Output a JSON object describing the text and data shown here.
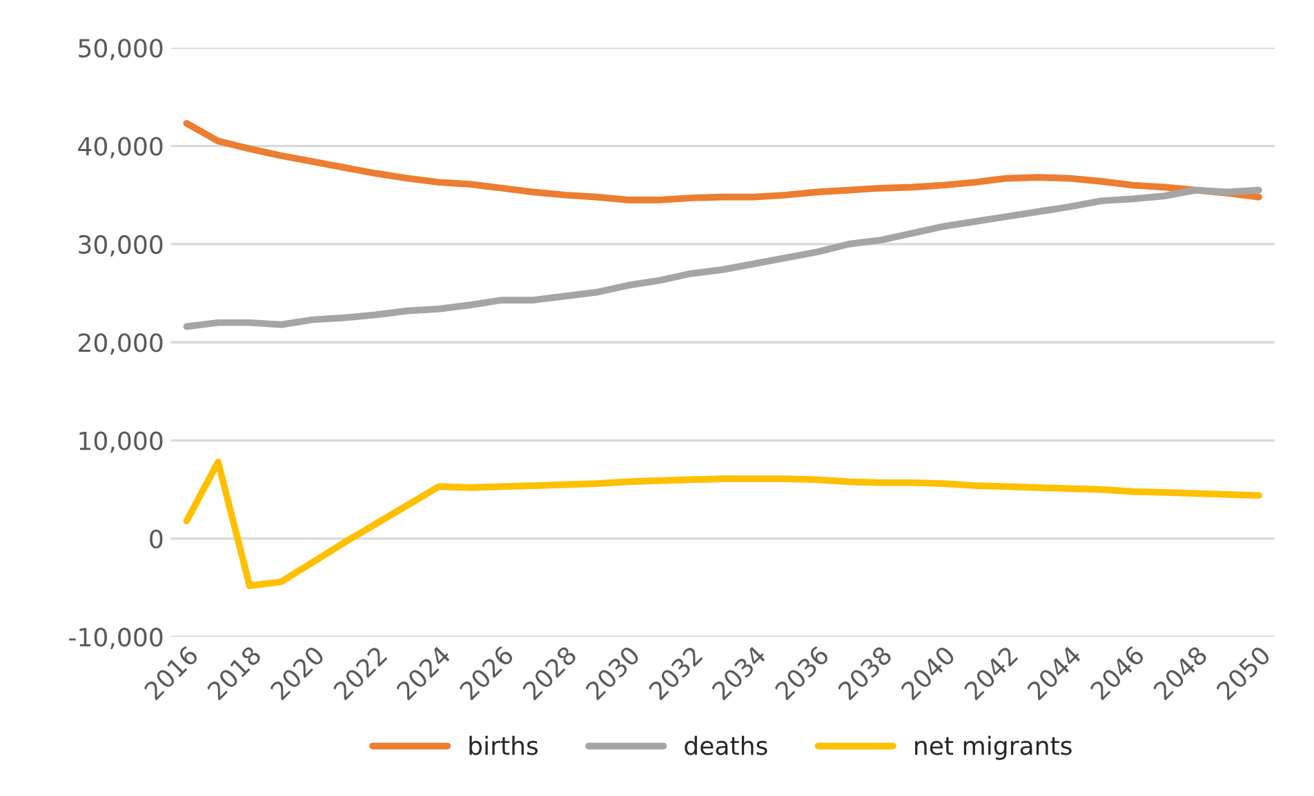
{
  "chart_data": {
    "type": "line",
    "categories": [
      "2016",
      null,
      "2018",
      null,
      "2020",
      null,
      "2022",
      null,
      "2024",
      null,
      "2026",
      null,
      "2028",
      null,
      "2030",
      null,
      "2032",
      null,
      "2034",
      null,
      "2036",
      null,
      "2038",
      null,
      "2040",
      null,
      "2042",
      null,
      "2044",
      null,
      "2046",
      null,
      "2048",
      null,
      "2050"
    ],
    "series": [
      {
        "name": "births",
        "color": "#ed7d31",
        "values": [
          42300,
          40500,
          39700,
          39000,
          38400,
          37800,
          37200,
          36700,
          36300,
          36100,
          35700,
          35300,
          35000,
          34800,
          34500,
          34500,
          34700,
          34800,
          34800,
          35000,
          35300,
          35500,
          35700,
          35800,
          36000,
          36300,
          36700,
          36800,
          36700,
          36400,
          36000,
          35800,
          35500,
          35200,
          34800
        ]
      },
      {
        "name": "deaths",
        "color": "#a5a5a5",
        "values": [
          21600,
          22000,
          22000,
          21800,
          22300,
          22500,
          22800,
          23200,
          23400,
          23800,
          24300,
          24300,
          24700,
          25100,
          25800,
          26300,
          27000,
          27400,
          28000,
          28600,
          29200,
          30000,
          30400,
          31100,
          31800,
          32300,
          32800,
          33300,
          33800,
          34400,
          34600,
          34900,
          35500,
          35300,
          35500
        ]
      },
      {
        "name": "net migrants",
        "color": "#ffc000",
        "values": [
          1800,
          7800,
          -4800,
          -4400,
          -2400,
          -400,
          1500,
          3400,
          5300,
          5200,
          5300,
          5400,
          5500,
          5600,
          5800,
          5900,
          6000,
          6100,
          6100,
          6100,
          6000,
          5800,
          5700,
          5700,
          5600,
          5400,
          5300,
          5200,
          5100,
          5000,
          4800,
          4700,
          4600,
          4500,
          4400
        ]
      }
    ],
    "ylim": [
      -10000,
      50000
    ],
    "yticks": [
      {
        "value": -10000,
        "label": "-10,000"
      },
      0,
      {
        "value": 10000,
        "label": "10,000"
      },
      {
        "value": 20000,
        "label": "20,000"
      },
      {
        "value": 30000,
        "label": "30,000"
      },
      {
        "value": 40000,
        "label": "40,000"
      },
      {
        "value": 50000,
        "label": "50,000"
      }
    ],
    "grid": "y",
    "legend": "bottom",
    "marker": "none",
    "line_style": "solid"
  }
}
